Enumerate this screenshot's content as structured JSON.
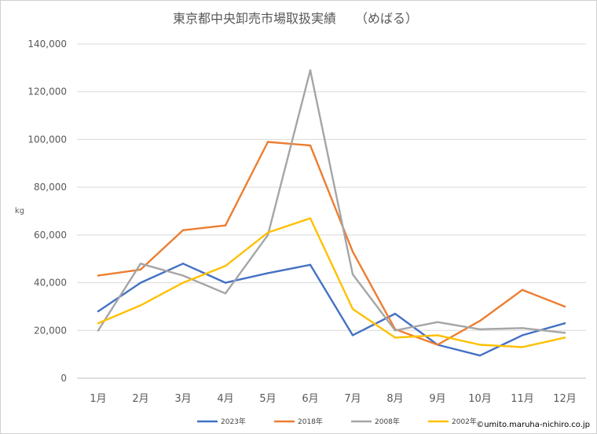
{
  "chart_data": {
    "type": "line",
    "title": "東京都中央卸売市場取扱実績　　（めばる）",
    "ylabel": "kg",
    "xlabel": "",
    "categories": [
      "1月",
      "2月",
      "3月",
      "4月",
      "5月",
      "6月",
      "7月",
      "8月",
      "9月",
      "10月",
      "11月",
      "12月"
    ],
    "ylim": [
      0,
      140000
    ],
    "yticks": [
      0,
      20000,
      40000,
      60000,
      80000,
      100000,
      120000,
      140000
    ],
    "ytick_labels": [
      "0",
      "20,000",
      "40,000",
      "60,000",
      "80,000",
      "100,000",
      "120,000",
      "140,000"
    ],
    "grid": true,
    "legend_position": "bottom",
    "series": [
      {
        "name": "2023年",
        "color": "#4472C4",
        "values": [
          28000,
          40000,
          48000,
          40000,
          44000,
          47500,
          18000,
          27000,
          14000,
          9500,
          18000,
          23000
        ]
      },
      {
        "name": "2018年",
        "color": "#ED7D31",
        "values": [
          43000,
          45500,
          62000,
          64000,
          99000,
          97500,
          53000,
          20500,
          14000,
          24000,
          37000,
          30000
        ]
      },
      {
        "name": "2008年",
        "color": "#A5A5A5",
        "values": [
          20000,
          48000,
          43000,
          35500,
          60000,
          129000,
          43500,
          20000,
          23500,
          20500,
          21000,
          19000
        ]
      },
      {
        "name": "2002年",
        "color": "#FFC000",
        "values": [
          23000,
          30500,
          40000,
          47000,
          61000,
          67000,
          29000,
          17000,
          18000,
          14000,
          13000,
          17000
        ]
      }
    ],
    "credit": "©umito.maruha-nichiro.co.jp"
  }
}
